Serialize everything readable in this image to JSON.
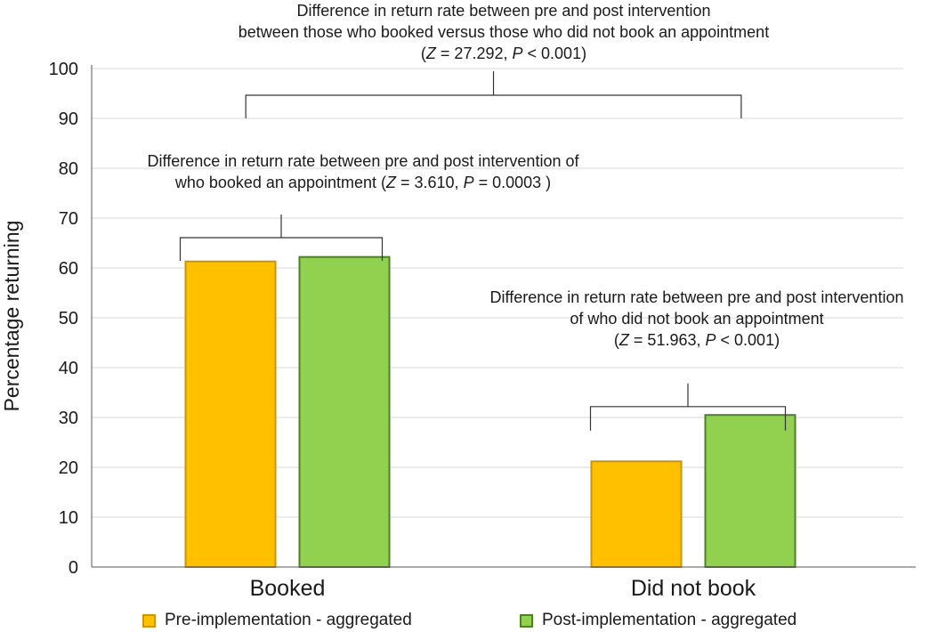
{
  "chart_data": {
    "type": "bar",
    "categories": [
      "Booked",
      "Did not book"
    ],
    "series": [
      {
        "name": "Pre-implementation - aggregated",
        "values": [
          61.3,
          21.2
        ],
        "color": "#FFC000",
        "stroke": "#C9960A"
      },
      {
        "name": "Post-implementation - aggregated",
        "values": [
          62.2,
          30.5
        ],
        "color": "#92D050",
        "stroke": "#4F7F2A"
      }
    ],
    "ylabel": "Percentage returning",
    "xlabel": "",
    "ylim": [
      0,
      100
    ],
    "yticks": [
      0,
      10,
      20,
      30,
      40,
      50,
      60,
      70,
      80,
      90,
      100
    ],
    "grid": true,
    "legend_position": "bottom",
    "annotations": [
      {
        "id": "overall",
        "lines": [
          "Difference in return rate between pre and post intervention",
          "between those who booked versus those who did not book an appointment",
          "(Z = 27.292, P < 0.001)"
        ],
        "bracket_y": 90
      },
      {
        "id": "booked",
        "lines": [
          "Difference in return rate between pre and post intervention of",
          "who booked an appointment (Z = 3.610, P = 0.0003 )"
        ],
        "bracket_y": 65
      },
      {
        "id": "notbooked",
        "lines": [
          "Difference in return rate between pre and post intervention",
          "of who did not book an appointment",
          "(Z = 51.963, P < 0.001)"
        ],
        "bracket_y": 32
      }
    ]
  }
}
